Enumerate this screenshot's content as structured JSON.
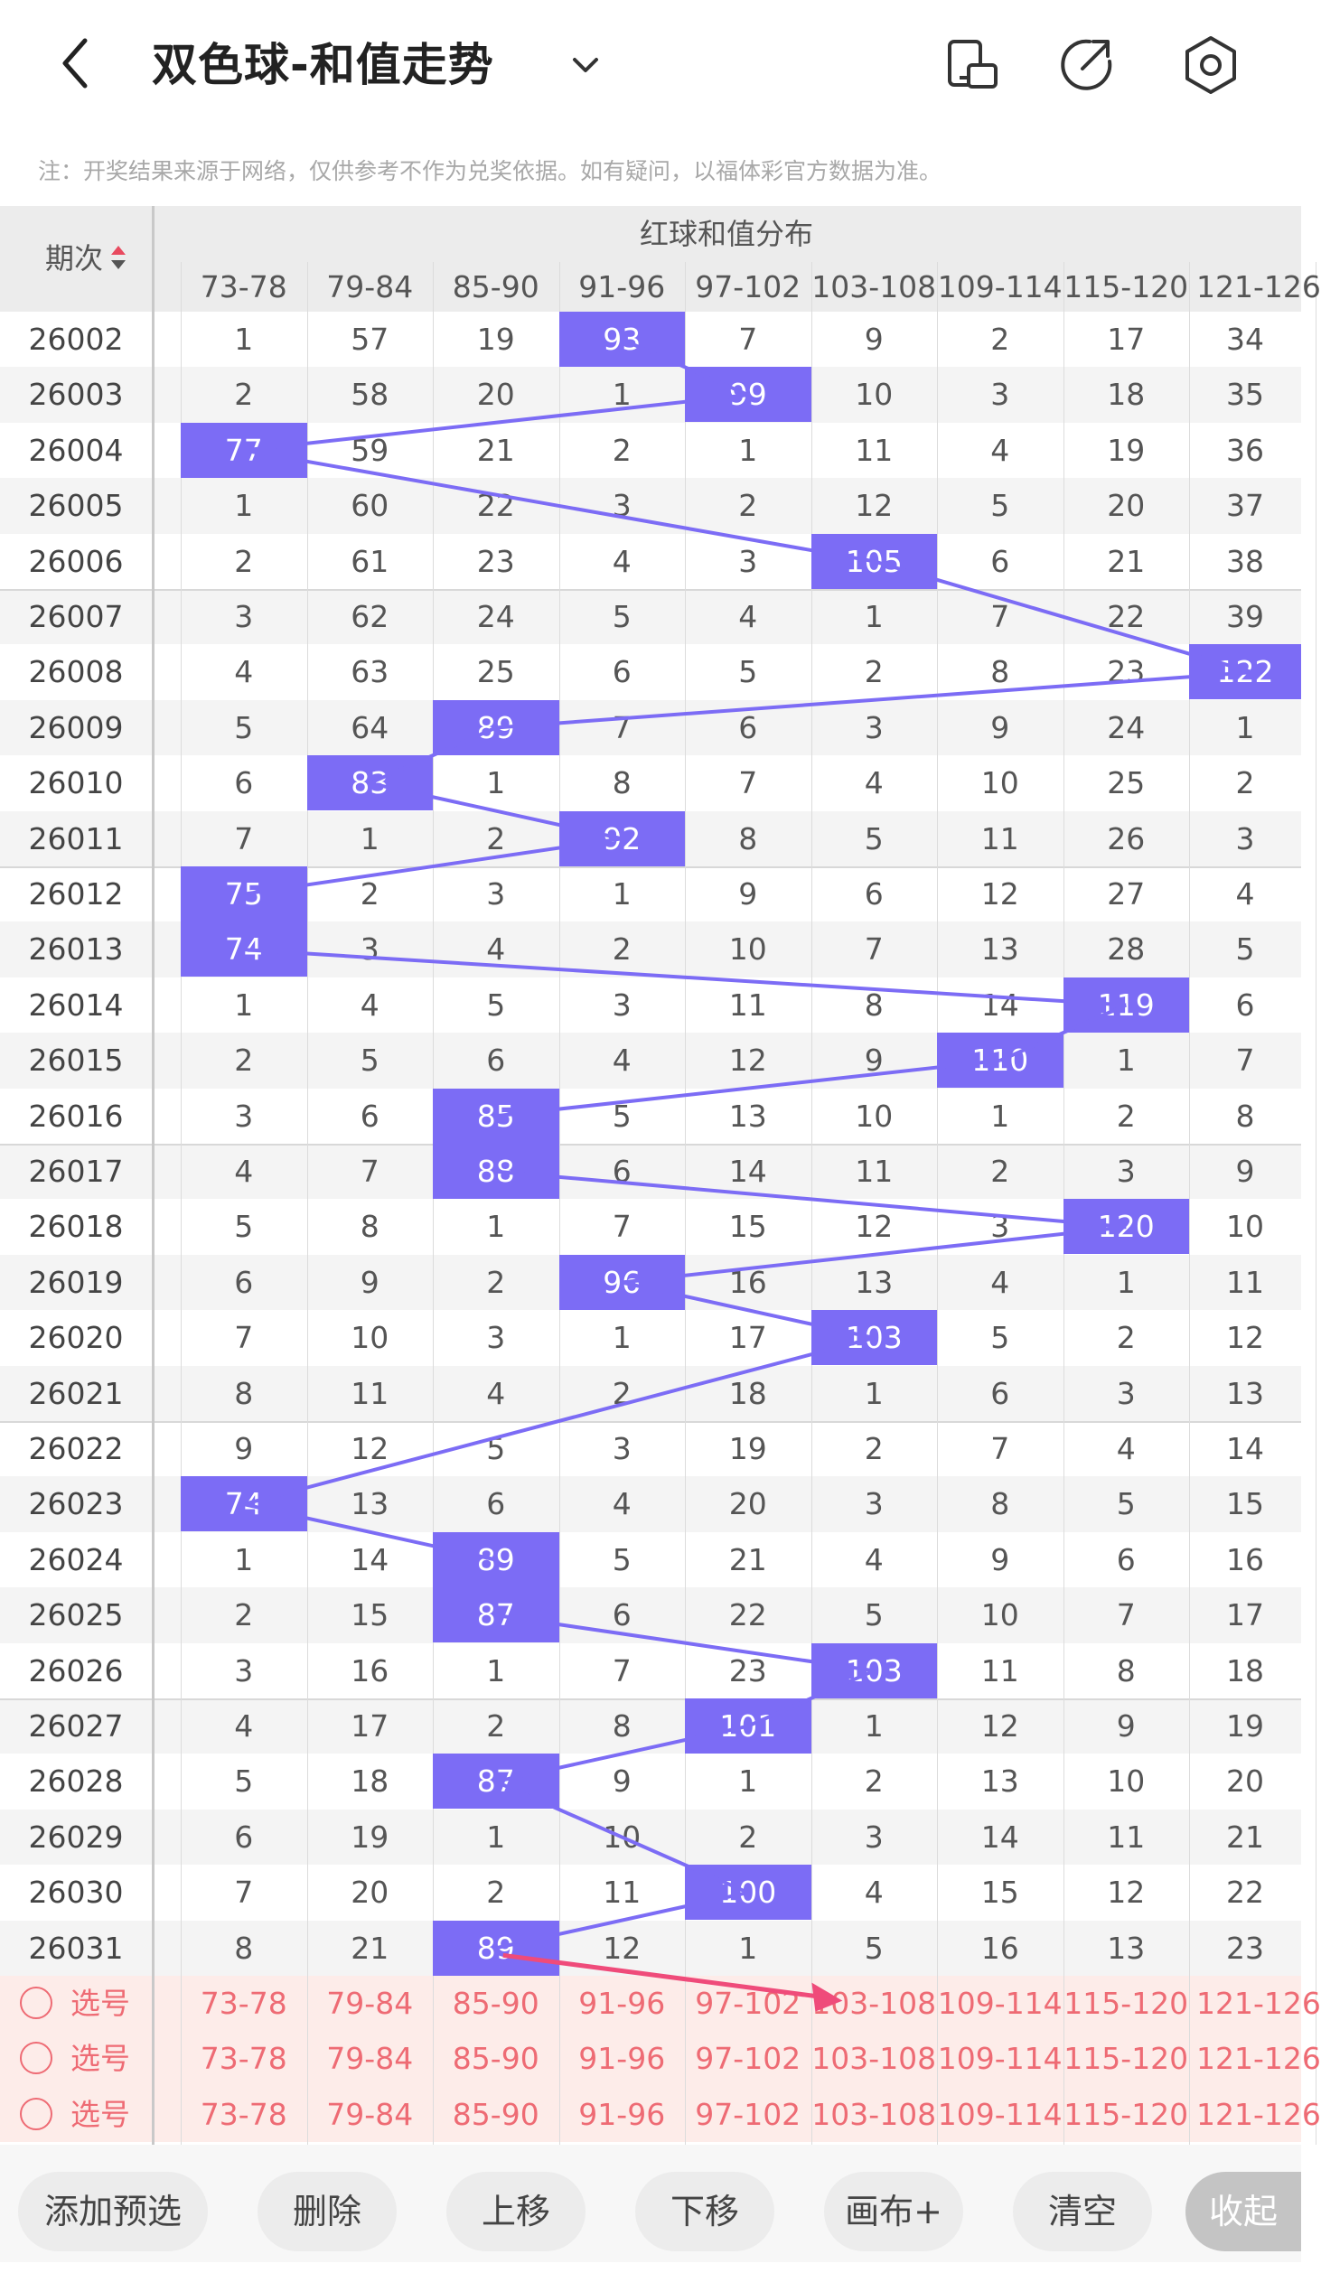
{
  "header": {
    "title": "双色球-和值走势",
    "back_icon": "back-icon",
    "dropdown_icon": "chevron-down-icon",
    "actions": [
      "phone-rotate-icon",
      "share-icon",
      "settings-icon"
    ]
  },
  "notice": "注：开奖结果来源于网络，仅供参考不作为兑奖依据。如有疑问，以福体彩官方数据为准。",
  "table": {
    "period_header": "期次",
    "group_title": "红球和值分布",
    "columns": [
      "73-78",
      "79-84",
      "85-90",
      "91-96",
      "97-102",
      "103-108",
      "109-114",
      "115-120",
      "121-126"
    ],
    "rows": [
      {
        "period": "26002",
        "values": [
          "1",
          "57",
          "19",
          "93",
          "7",
          "9",
          "2",
          "17",
          "34"
        ],
        "hit": 3
      },
      {
        "period": "26003",
        "values": [
          "2",
          "58",
          "20",
          "1",
          "99",
          "10",
          "3",
          "18",
          "35"
        ],
        "hit": 4
      },
      {
        "period": "26004",
        "values": [
          "77",
          "59",
          "21",
          "2",
          "1",
          "11",
          "4",
          "19",
          "36"
        ],
        "hit": 0
      },
      {
        "period": "26005",
        "values": [
          "1",
          "60",
          "22",
          "3",
          "2",
          "12",
          "5",
          "20",
          "37"
        ],
        "hit": -1
      },
      {
        "period": "26006",
        "values": [
          "2",
          "61",
          "23",
          "4",
          "3",
          "105",
          "6",
          "21",
          "38"
        ],
        "hit": 5
      },
      {
        "period": "26007",
        "values": [
          "3",
          "62",
          "24",
          "5",
          "4",
          "1",
          "7",
          "22",
          "39"
        ],
        "hit": -1
      },
      {
        "period": "26008",
        "values": [
          "4",
          "63",
          "25",
          "6",
          "5",
          "2",
          "8",
          "23",
          "122"
        ],
        "hit": 8
      },
      {
        "period": "26009",
        "values": [
          "5",
          "64",
          "89",
          "7",
          "6",
          "3",
          "9",
          "24",
          "1"
        ],
        "hit": 2
      },
      {
        "period": "26010",
        "values": [
          "6",
          "83",
          "1",
          "8",
          "7",
          "4",
          "10",
          "25",
          "2"
        ],
        "hit": 1
      },
      {
        "period": "26011",
        "values": [
          "7",
          "1",
          "2",
          "92",
          "8",
          "5",
          "11",
          "26",
          "3"
        ],
        "hit": 3
      },
      {
        "period": "26012",
        "values": [
          "75",
          "2",
          "3",
          "1",
          "9",
          "6",
          "12",
          "27",
          "4"
        ],
        "hit": 0
      },
      {
        "period": "26013",
        "values": [
          "74",
          "3",
          "4",
          "2",
          "10",
          "7",
          "13",
          "28",
          "5"
        ],
        "hit": 0
      },
      {
        "period": "26014",
        "values": [
          "1",
          "4",
          "5",
          "3",
          "11",
          "8",
          "14",
          "119",
          "6"
        ],
        "hit": 7
      },
      {
        "period": "26015",
        "values": [
          "2",
          "5",
          "6",
          "4",
          "12",
          "9",
          "110",
          "1",
          "7"
        ],
        "hit": 6
      },
      {
        "period": "26016",
        "values": [
          "3",
          "6",
          "85",
          "5",
          "13",
          "10",
          "1",
          "2",
          "8"
        ],
        "hit": 2
      },
      {
        "period": "26017",
        "values": [
          "4",
          "7",
          "88",
          "6",
          "14",
          "11",
          "2",
          "3",
          "9"
        ],
        "hit": 2
      },
      {
        "period": "26018",
        "values": [
          "5",
          "8",
          "1",
          "7",
          "15",
          "12",
          "3",
          "120",
          "10"
        ],
        "hit": 7
      },
      {
        "period": "26019",
        "values": [
          "6",
          "9",
          "2",
          "96",
          "16",
          "13",
          "4",
          "1",
          "11"
        ],
        "hit": 3
      },
      {
        "period": "26020",
        "values": [
          "7",
          "10",
          "3",
          "1",
          "17",
          "103",
          "5",
          "2",
          "12"
        ],
        "hit": 5
      },
      {
        "period": "26021",
        "values": [
          "8",
          "11",
          "4",
          "2",
          "18",
          "1",
          "6",
          "3",
          "13"
        ],
        "hit": -1
      },
      {
        "period": "26022",
        "values": [
          "9",
          "12",
          "5",
          "3",
          "19",
          "2",
          "7",
          "4",
          "14"
        ],
        "hit": -1
      },
      {
        "period": "26023",
        "values": [
          "74",
          "13",
          "6",
          "4",
          "20",
          "3",
          "8",
          "5",
          "15"
        ],
        "hit": 0
      },
      {
        "period": "26024",
        "values": [
          "1",
          "14",
          "89",
          "5",
          "21",
          "4",
          "9",
          "6",
          "16"
        ],
        "hit": 2
      },
      {
        "period": "26025",
        "values": [
          "2",
          "15",
          "87",
          "6",
          "22",
          "5",
          "10",
          "7",
          "17"
        ],
        "hit": 2
      },
      {
        "period": "26026",
        "values": [
          "3",
          "16",
          "1",
          "7",
          "23",
          "103",
          "11",
          "8",
          "18"
        ],
        "hit": 5
      },
      {
        "period": "26027",
        "values": [
          "4",
          "17",
          "2",
          "8",
          "101",
          "1",
          "12",
          "9",
          "19"
        ],
        "hit": 4
      },
      {
        "period": "26028",
        "values": [
          "5",
          "18",
          "87",
          "9",
          "1",
          "2",
          "13",
          "10",
          "20"
        ],
        "hit": 2
      },
      {
        "period": "26029",
        "values": [
          "6",
          "19",
          "1",
          "10",
          "2",
          "3",
          "14",
          "11",
          "21"
        ],
        "hit": -1
      },
      {
        "period": "26030",
        "values": [
          "7",
          "20",
          "2",
          "11",
          "100",
          "4",
          "15",
          "12",
          "22"
        ],
        "hit": 4
      },
      {
        "period": "26031",
        "values": [
          "8",
          "21",
          "89",
          "12",
          "1",
          "5",
          "16",
          "13",
          "23"
        ],
        "hit": 2
      }
    ],
    "pick_label": "选号",
    "pick_rows": 3
  },
  "colors": {
    "hit": "#7c6cf5",
    "line": "#7c6cf5",
    "pick": "#ee6b74",
    "arrow": "#ef4b7a",
    "pick_bg": "#fdece9"
  },
  "buttons": {
    "add_preselect": "添加预选",
    "delete": "删除",
    "move_up": "上移",
    "move_down": "下移",
    "canvas": "画布+",
    "clear": "清空",
    "collapse": "收起"
  }
}
